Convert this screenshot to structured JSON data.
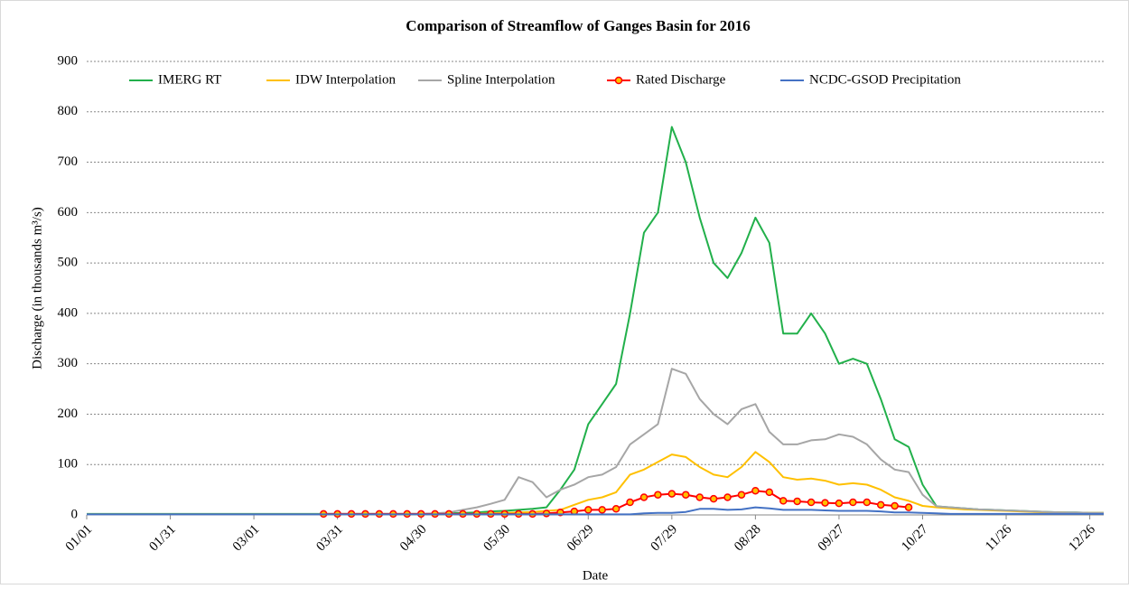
{
  "chart_data": {
    "type": "line",
    "title": "Comparison of Streamflow of Ganges Basin for 2016",
    "xlabel": "Date",
    "ylabel": "Discharge (in thousands m³/s)",
    "categories": [
      "01/01",
      null,
      null,
      null,
      null,
      null,
      "01/31",
      null,
      null,
      null,
      null,
      null,
      "03/01",
      null,
      null,
      null,
      null,
      null,
      "03/31",
      null,
      null,
      null,
      null,
      null,
      "04/30",
      null,
      null,
      null,
      null,
      null,
      "05/30",
      null,
      null,
      null,
      null,
      null,
      "06/29",
      null,
      null,
      null,
      null,
      null,
      "07/29",
      null,
      null,
      null,
      null,
      null,
      "08/28",
      null,
      null,
      null,
      null,
      null,
      "09/27",
      null,
      null,
      null,
      null,
      null,
      "10/27",
      null,
      null,
      null,
      null,
      null,
      "11/26",
      null,
      null,
      null,
      null,
      null,
      "12/26",
      null
    ],
    "series": [
      {
        "name": "IMERG RT",
        "color": "#22b04b",
        "values": [
          2,
          2,
          2,
          2,
          2,
          2,
          2,
          2,
          2,
          2,
          2,
          2,
          2,
          2,
          2,
          2,
          2,
          2,
          2,
          2,
          2,
          2,
          2,
          2,
          2,
          2,
          3,
          4,
          5,
          7,
          8,
          10,
          12,
          15,
          50,
          90,
          180,
          220,
          260,
          400,
          560,
          600,
          770,
          700,
          590,
          500,
          470,
          520,
          590,
          540,
          360,
          360,
          400,
          360,
          300,
          310,
          300,
          230,
          150,
          135,
          60,
          17,
          15,
          13,
          11,
          10,
          9,
          8,
          7,
          6,
          5,
          5,
          4,
          4
        ]
      },
      {
        "name": "IDW Interpolation",
        "color": "#ffc000",
        "values": [
          1,
          1,
          1,
          1,
          1,
          1,
          1,
          1,
          1,
          1,
          1,
          1,
          1,
          1,
          1,
          1,
          1,
          1,
          1,
          1,
          1,
          1,
          1,
          1,
          1,
          1,
          1,
          1,
          2,
          3,
          4,
          5,
          6,
          8,
          10,
          20,
          30,
          35,
          45,
          80,
          90,
          105,
          120,
          115,
          95,
          80,
          75,
          95,
          125,
          105,
          75,
          70,
          72,
          68,
          60,
          63,
          60,
          50,
          35,
          28,
          18,
          15,
          13,
          11,
          10,
          9,
          8,
          7,
          6,
          5,
          5,
          4,
          4,
          4
        ]
      },
      {
        "name": "Spline Interpolation",
        "color": "#a6a6a6",
        "values": [
          1,
          1,
          1,
          1,
          1,
          1,
          1,
          1,
          1,
          1,
          1,
          1,
          1,
          1,
          1,
          1,
          1,
          1,
          1,
          1,
          1,
          1,
          1,
          1,
          2,
          3,
          5,
          10,
          15,
          22,
          30,
          75,
          65,
          35,
          50,
          60,
          75,
          80,
          95,
          140,
          160,
          180,
          290,
          280,
          230,
          200,
          180,
          210,
          220,
          165,
          140,
          140,
          148,
          150,
          160,
          155,
          140,
          110,
          90,
          85,
          40,
          17,
          15,
          13,
          11,
          10,
          9,
          8,
          7,
          6,
          5,
          5,
          4,
          4
        ]
      },
      {
        "name": "Rated Discharge",
        "color": "#ff0000",
        "marker_fill": "#ffc000",
        "values": [
          null,
          null,
          null,
          null,
          null,
          null,
          null,
          null,
          null,
          null,
          null,
          null,
          null,
          null,
          null,
          null,
          null,
          2,
          2,
          2,
          2,
          2,
          2,
          2,
          2,
          2,
          2,
          2,
          2,
          2,
          2,
          2,
          2,
          3,
          5,
          7,
          10,
          10,
          12,
          25,
          35,
          40,
          42,
          40,
          35,
          32,
          35,
          40,
          48,
          45,
          28,
          27,
          25,
          24,
          23,
          25,
          25,
          20,
          18,
          15,
          null,
          null,
          null,
          null,
          null,
          null,
          null,
          null,
          null,
          null,
          null,
          null,
          null,
          null
        ]
      },
      {
        "name": "NCDC-GSOD Precipitation",
        "color": "#4472c4",
        "values": [
          1,
          1,
          1,
          1,
          1,
          1,
          1,
          1,
          1,
          1,
          1,
          1,
          1,
          1,
          1,
          1,
          1,
          1,
          1,
          1,
          1,
          1,
          1,
          1,
          1,
          1,
          1,
          1,
          1,
          1,
          1,
          1,
          1,
          1,
          1,
          1,
          1,
          1,
          1,
          1,
          3,
          4,
          4,
          6,
          12,
          12,
          10,
          11,
          15,
          13,
          10,
          10,
          10,
          9,
          8,
          8,
          8,
          7,
          5,
          5,
          4,
          3,
          2,
          2,
          2,
          2,
          2,
          2,
          2,
          2,
          2,
          2,
          2,
          2
        ]
      }
    ],
    "ylim": [
      0,
      900
    ],
    "yticks": [
      0,
      100,
      200,
      300,
      400,
      500,
      600,
      700,
      800,
      900
    ],
    "grid": true,
    "legend": "top"
  }
}
